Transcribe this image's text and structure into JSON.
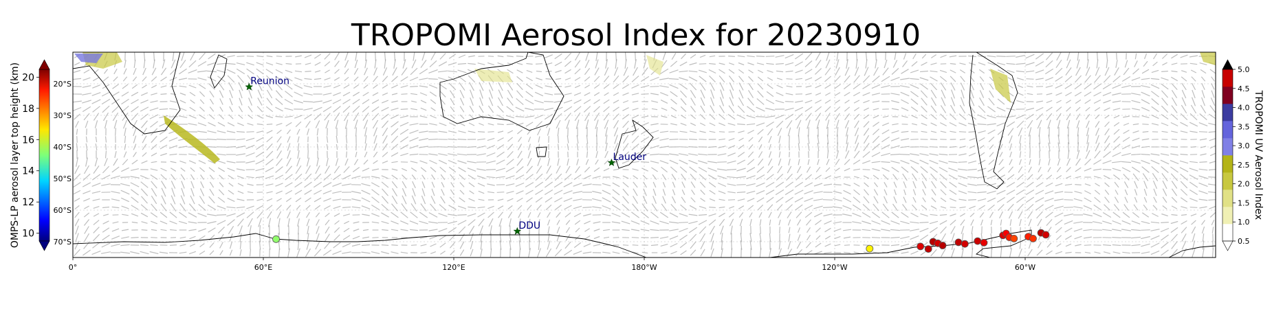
{
  "chart_data": {
    "type": "map",
    "title": "TROPOMI Aerosol Index for 20230910",
    "map": {
      "lon_range": [
        0,
        360
      ],
      "lat_range": [
        -75,
        -10
      ],
      "x_ticks": [
        "0°",
        "60°E",
        "120°E",
        "180°W",
        "120°W",
        "60°W"
      ],
      "x_tick_lons": [
        0,
        60,
        120,
        180,
        240,
        300
      ],
      "lat_ticks": [
        "20°S",
        "30°S",
        "40°S",
        "50°S",
        "60°S",
        "70°S"
      ],
      "lat_tick_values": [
        -20,
        -30,
        -40,
        -50,
        -60,
        -70
      ],
      "grid": true
    },
    "stations": [
      {
        "name": "Reunion",
        "lon": 55.5,
        "lat": -21
      },
      {
        "name": "Lauder",
        "lon": 169.7,
        "lat": -45
      },
      {
        "name": "DDU",
        "lon": 140,
        "lat": -66.7
      }
    ],
    "omps_points": [
      {
        "lon": 64,
        "lat": -69.2,
        "height": 15.2
      },
      {
        "lon": 251,
        "lat": -72.2,
        "height": 16.5
      },
      {
        "lon": 267,
        "lat": -71.5,
        "height": 19.5
      },
      {
        "lon": 269.5,
        "lat": -72.3,
        "height": 19.8
      },
      {
        "lon": 271,
        "lat": -70.0,
        "height": 19.9
      },
      {
        "lon": 272.5,
        "lat": -70.5,
        "height": 19.6
      },
      {
        "lon": 274,
        "lat": -71.2,
        "height": 19.9
      },
      {
        "lon": 279,
        "lat": -70.2,
        "height": 19.8
      },
      {
        "lon": 281,
        "lat": -70.7,
        "height": 19.6
      },
      {
        "lon": 285,
        "lat": -69.8,
        "height": 19.7
      },
      {
        "lon": 287,
        "lat": -70.3,
        "height": 19.4
      },
      {
        "lon": 293,
        "lat": -68.0,
        "height": 19.5
      },
      {
        "lon": 294,
        "lat": -67.4,
        "height": 19.2
      },
      {
        "lon": 295,
        "lat": -68.6,
        "height": 18.8
      },
      {
        "lon": 296.5,
        "lat": -69.0,
        "height": 18.4
      },
      {
        "lon": 301,
        "lat": -68.4,
        "height": 18.8
      },
      {
        "lon": 302.5,
        "lat": -69.0,
        "height": 18.6
      },
      {
        "lon": 305,
        "lat": -67.2,
        "height": 19.9
      },
      {
        "lon": 306.5,
        "lat": -67.8,
        "height": 19.6
      }
    ],
    "left_colorbar": {
      "label": "OMPS-LP aerosol layer top height (km)",
      "range": [
        9.5,
        20.5
      ],
      "ticks": [
        "10",
        "12",
        "14",
        "16",
        "18",
        "20"
      ],
      "tick_values": [
        10,
        12,
        14,
        16,
        18,
        20
      ],
      "colormap": "jet",
      "extend": "both"
    },
    "right_colorbar": {
      "label": "TROPOMI UV Aerosol Index",
      "range": [
        0.5,
        5.0
      ],
      "ticks": [
        "0.5",
        "1.0",
        "1.5",
        "2.0",
        "2.5",
        "3.0",
        "3.5",
        "4.0",
        "4.5",
        "5.0"
      ],
      "tick_values": [
        0.5,
        1.0,
        1.5,
        2.0,
        2.5,
        3.0,
        3.5,
        4.0,
        4.5,
        5.0
      ],
      "extend": "both",
      "colors": [
        "#ffffff",
        "#f0f0b4",
        "#e1e186",
        "#c8c840",
        "#b4b418",
        "#8080e6",
        "#6464dc",
        "#3c3ca0",
        "#800020",
        "#c80000"
      ]
    }
  }
}
